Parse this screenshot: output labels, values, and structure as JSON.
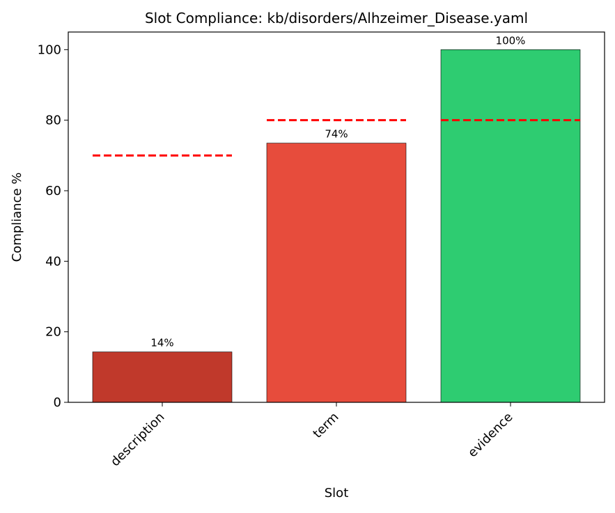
{
  "chart_data": {
    "type": "bar",
    "title": "Slot Compliance: kb/disorders/Alhzeimer_Disease.yaml",
    "xlabel": "Slot",
    "ylabel": "Compliance %",
    "categories": [
      "description",
      "term",
      "evidence"
    ],
    "values": [
      14.3,
      73.5,
      100
    ],
    "data_labels": [
      "14%",
      "74%",
      "100%"
    ],
    "thresholds": [
      70,
      80,
      80
    ],
    "bar_colors": [
      "#c0392b",
      "#e74c3c",
      "#2ecc71"
    ],
    "threshold_color": "#ff0000",
    "ylim": [
      0,
      105
    ],
    "yticks": [
      0,
      20,
      40,
      60,
      80,
      100
    ],
    "grid": false
  }
}
